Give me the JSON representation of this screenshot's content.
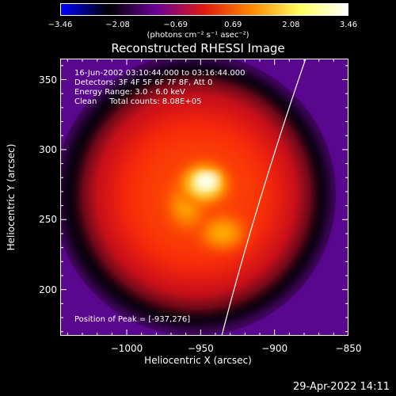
{
  "colorbar": {
    "colors": [
      "#0000ff",
      "#000000",
      "#6a0097",
      "#e11a10",
      "#ff8a00",
      "#ffff60",
      "#ffffff"
    ],
    "tick_values": [
      -3.46,
      -2.08,
      -0.69,
      0.69,
      2.08,
      3.46
    ],
    "ticks": [
      "−3.46",
      "−2.08",
      "−0.69",
      "0.69",
      "2.08",
      "3.46"
    ],
    "units": "(photons cm⁻² s⁻¹ asec⁻²)"
  },
  "title": "Reconstructed RHESSI Image",
  "info": {
    "time": "16-Jun-2002 03:10:44.000 to 03:16:44.000",
    "detectors": "Detectors: 3F 4F 5F 6F 7F 8F, Att 0",
    "energy": "Energy Range: 3.0 - 6.0 keV",
    "clean": "Clean     Total counts: 8.08E+05"
  },
  "peak_label": "Position of Peak = [-937,276]",
  "x_axis": {
    "label": "Heliocentric X (arcsec)",
    "range": [
      -1045,
      -850
    ],
    "ticks": [
      -1000,
      -950,
      -900,
      -850
    ],
    "tick_labels": [
      "−1000",
      "−950",
      "−900",
      "−850"
    ]
  },
  "y_axis": {
    "label": "Heliocentric Y (arcsec)",
    "range": [
      167,
      365
    ],
    "ticks": [
      200,
      250,
      300,
      350
    ],
    "tick_labels": [
      "200",
      "250",
      "300",
      "350"
    ]
  },
  "limb_color": "#ffffff",
  "footer": "29-Apr-2022 14:11"
}
